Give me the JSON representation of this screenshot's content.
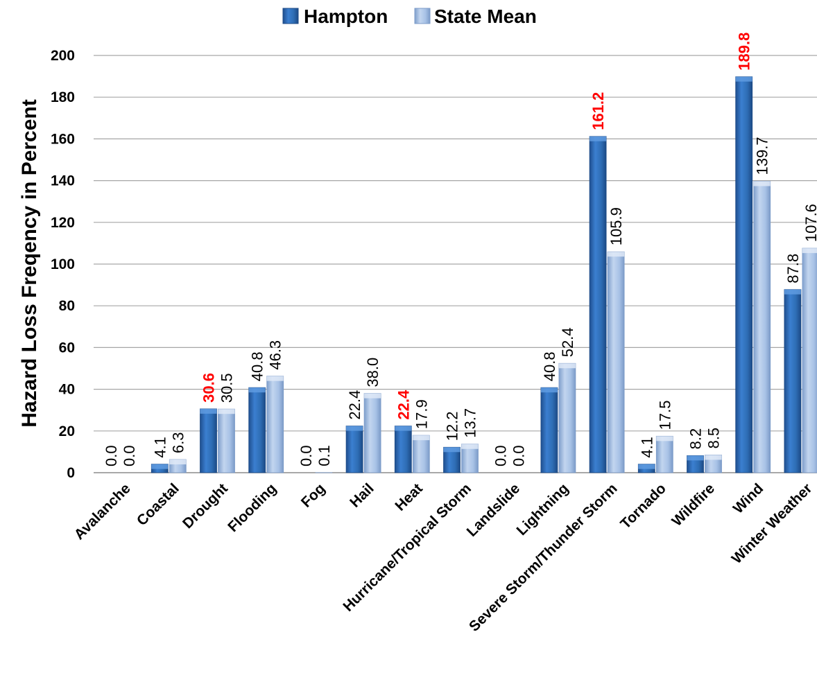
{
  "chart_data": {
    "type": "bar",
    "title": "",
    "xlabel": "",
    "ylabel": "Hazard Loss Freqency in Percent",
    "ylim": [
      0,
      200
    ],
    "yticks": [
      0,
      20,
      40,
      60,
      80,
      100,
      120,
      140,
      160,
      180,
      200
    ],
    "grid": true,
    "legend_position": "top-center",
    "categories": [
      "Avalanche",
      "Coastal",
      "Drought",
      "Flooding",
      "Fog",
      "Hail",
      "Heat",
      "Hurricane/Tropical Storm",
      "Landslide",
      "Lightning",
      "Severe Storm/Thunder Storm",
      "Tornado",
      "Wildfire",
      "Wind",
      "Winter Weather"
    ],
    "series": [
      {
        "name": "Hampton",
        "color": "#2e6db4",
        "values": [
          0.0,
          4.1,
          30.6,
          40.8,
          0.0,
          22.4,
          22.4,
          12.2,
          0.0,
          40.8,
          161.2,
          4.1,
          8.2,
          189.8,
          87.8
        ],
        "labels": [
          "0.0",
          "4.1",
          "30.6",
          "40.8",
          "0.0",
          "22.4",
          "22.4",
          "12.2",
          "0.0",
          "40.8",
          "161.2",
          "4.1",
          "8.2",
          "189.8",
          "87.8"
        ]
      },
      {
        "name": "State Mean",
        "color": "#9db9e0",
        "values": [
          0.0,
          6.3,
          30.5,
          46.3,
          0.1,
          38.0,
          17.9,
          13.7,
          0.0,
          52.4,
          105.9,
          17.5,
          8.5,
          139.7,
          107.6
        ],
        "labels": [
          "0.0",
          "6.3",
          "30.5",
          "46.3",
          "0.1",
          "38.0",
          "17.9",
          "13.7",
          "0.0",
          "52.4",
          "105.9",
          "17.5",
          "8.5",
          "139.7",
          "107.6"
        ]
      }
    ],
    "highlighted_labels": [
      {
        "series": "Hampton",
        "category": "Drought"
      },
      {
        "series": "Hampton",
        "category": "Heat"
      },
      {
        "series": "Hampton",
        "category": "Severe Storm/Thunder Storm"
      },
      {
        "series": "Hampton",
        "category": "Wind"
      }
    ],
    "highlight_color": "#ff0000"
  }
}
